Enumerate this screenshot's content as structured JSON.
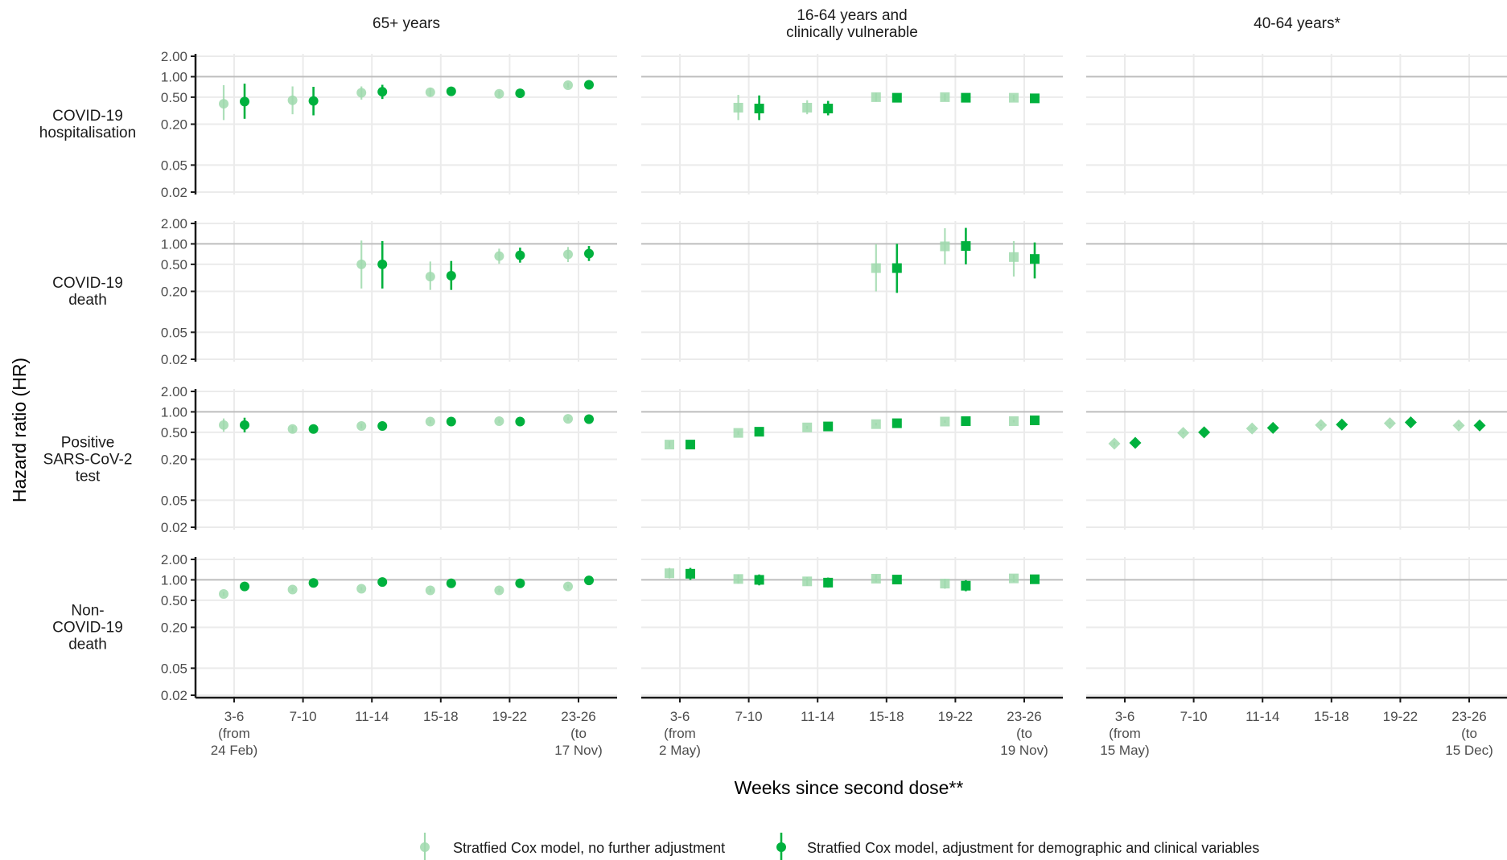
{
  "chart_data": {
    "type": "scatter",
    "subtype": "point-range facet grid",
    "ylabel": "Hazard ratio (HR)",
    "xlabel": "Weeks since second dose**",
    "y_scale": "log",
    "ylim": [
      0.02,
      2.0
    ],
    "y_ticks": [
      2.0,
      1.0,
      0.5,
      0.2,
      0.05,
      0.02
    ],
    "y_tick_labels": [
      "2.00",
      "1.00",
      "0.50",
      "0.20",
      "0.05",
      "0.02"
    ],
    "reference_line": 1.0,
    "categories": [
      "3-6",
      "7-10",
      "11-14",
      "15-18",
      "19-22",
      "23-26"
    ],
    "grid": true,
    "legend_position": "bottom",
    "legend": [
      {
        "name": "Stratfied Cox model, no further adjustment",
        "style": "faded"
      },
      {
        "name": "Stratfied Cox model, adjustment for demographic and clinical variables",
        "style": "solid"
      }
    ],
    "colors": {
      "adjusted": "#00b13e",
      "unadjusted": "#9fd9ad",
      "reference_line": "#bdbdbd",
      "grid": "#ebebeb",
      "axis": "#1a1a1a"
    },
    "columns": [
      {
        "title": [
          "65+ years"
        ],
        "shape": "circle",
        "tick_labels": [
          [
            "3-6",
            "(from",
            "24 Feb)"
          ],
          [
            "7-10"
          ],
          [
            "11-14"
          ],
          [
            "15-18"
          ],
          [
            "19-22"
          ],
          [
            "23-26",
            "(to",
            "17 Nov)"
          ]
        ]
      },
      {
        "title": [
          "16-64 years and",
          "clinically vulnerable"
        ],
        "shape": "square",
        "tick_labels": [
          [
            "3-6",
            "(from",
            "2 May)"
          ],
          [
            "7-10"
          ],
          [
            "11-14"
          ],
          [
            "15-18"
          ],
          [
            "19-22"
          ],
          [
            "23-26",
            "(to",
            "19 Nov)"
          ]
        ]
      },
      {
        "title": [
          "40-64 years*"
        ],
        "shape": "diamond",
        "tick_labels": [
          [
            "3-6",
            "(from",
            "15 May)"
          ],
          [
            "7-10"
          ],
          [
            "11-14"
          ],
          [
            "15-18"
          ],
          [
            "19-22"
          ],
          [
            "23-26",
            "(to",
            "15 Dec)"
          ]
        ]
      }
    ],
    "rows": [
      {
        "label": [
          "COVID-19",
          "hospitalisation"
        ]
      },
      {
        "label": [
          "COVID-19",
          "death"
        ]
      },
      {
        "label": [
          "Positive",
          "SARS-CoV-2",
          "test"
        ]
      },
      {
        "label": [
          "Non-",
          "COVID-19",
          "death"
        ]
      }
    ],
    "panels": [
      {
        "row": 0,
        "col": 0,
        "series": [
          {
            "model": "unadjusted",
            "points": [
              [
                0,
                0.4,
                0.23,
                0.75
              ],
              [
                1,
                0.45,
                0.28,
                0.72
              ],
              [
                2,
                0.58,
                0.46,
                0.72
              ],
              [
                3,
                0.59,
                0.51,
                0.67
              ],
              [
                4,
                0.56,
                0.5,
                0.62
              ],
              [
                5,
                0.75,
                0.69,
                0.81
              ]
            ]
          },
          {
            "model": "adjusted",
            "points": [
              [
                0,
                0.43,
                0.24,
                0.79
              ],
              [
                1,
                0.44,
                0.27,
                0.71
              ],
              [
                2,
                0.6,
                0.47,
                0.76
              ],
              [
                3,
                0.61,
                0.53,
                0.69
              ],
              [
                4,
                0.57,
                0.51,
                0.63
              ],
              [
                5,
                0.76,
                0.7,
                0.82
              ]
            ]
          }
        ]
      },
      {
        "row": 0,
        "col": 1,
        "series": [
          {
            "model": "unadjusted",
            "points": [
              [
                1,
                0.35,
                0.23,
                0.54
              ],
              [
                2,
                0.35,
                0.28,
                0.45
              ],
              [
                3,
                0.5,
                0.43,
                0.58
              ],
              [
                4,
                0.5,
                0.44,
                0.56
              ],
              [
                5,
                0.49,
                0.44,
                0.54
              ]
            ]
          },
          {
            "model": "adjusted",
            "points": [
              [
                1,
                0.34,
                0.23,
                0.53
              ],
              [
                2,
                0.34,
                0.27,
                0.44
              ],
              [
                3,
                0.49,
                0.42,
                0.57
              ],
              [
                4,
                0.49,
                0.43,
                0.55
              ],
              [
                5,
                0.48,
                0.43,
                0.53
              ]
            ]
          }
        ]
      },
      {
        "row": 0,
        "col": 2,
        "series": []
      },
      {
        "row": 1,
        "col": 0,
        "series": [
          {
            "model": "unadjusted",
            "points": [
              [
                2,
                0.5,
                0.22,
                1.12
              ],
              [
                3,
                0.33,
                0.21,
                0.55
              ],
              [
                4,
                0.66,
                0.51,
                0.85
              ],
              [
                5,
                0.7,
                0.54,
                0.9
              ]
            ]
          },
          {
            "model": "adjusted",
            "points": [
              [
                2,
                0.5,
                0.22,
                1.1
              ],
              [
                3,
                0.34,
                0.21,
                0.56
              ],
              [
                4,
                0.68,
                0.53,
                0.88
              ],
              [
                5,
                0.72,
                0.56,
                0.93
              ]
            ]
          }
        ]
      },
      {
        "row": 1,
        "col": 1,
        "series": [
          {
            "model": "unadjusted",
            "points": [
              [
                3,
                0.44,
                0.2,
                0.99
              ],
              [
                4,
                0.92,
                0.5,
                1.7
              ],
              [
                5,
                0.64,
                0.33,
                1.1
              ]
            ]
          },
          {
            "model": "adjusted",
            "points": [
              [
                3,
                0.44,
                0.19,
                1.0
              ],
              [
                4,
                0.93,
                0.5,
                1.72
              ],
              [
                5,
                0.6,
                0.31,
                1.05
              ]
            ]
          }
        ]
      },
      {
        "row": 1,
        "col": 2,
        "series": []
      },
      {
        "row": 2,
        "col": 0,
        "series": [
          {
            "model": "unadjusted",
            "points": [
              [
                0,
                0.64,
                0.51,
                0.8
              ],
              [
                1,
                0.56,
                0.5,
                0.62
              ],
              [
                2,
                0.62,
                0.57,
                0.67
              ],
              [
                3,
                0.72,
                0.68,
                0.76
              ],
              [
                4,
                0.73,
                0.69,
                0.77
              ],
              [
                5,
                0.79,
                0.75,
                0.83
              ]
            ]
          },
          {
            "model": "adjusted",
            "points": [
              [
                0,
                0.64,
                0.5,
                0.82
              ],
              [
                1,
                0.56,
                0.5,
                0.62
              ],
              [
                2,
                0.62,
                0.57,
                0.67
              ],
              [
                3,
                0.72,
                0.68,
                0.76
              ],
              [
                4,
                0.72,
                0.68,
                0.76
              ],
              [
                5,
                0.78,
                0.74,
                0.82
              ]
            ]
          }
        ]
      },
      {
        "row": 2,
        "col": 1,
        "series": [
          {
            "model": "unadjusted",
            "points": [
              [
                0,
                0.33,
                0.3,
                0.37
              ],
              [
                1,
                0.49,
                0.46,
                0.52
              ],
              [
                2,
                0.59,
                0.56,
                0.62
              ],
              [
                3,
                0.66,
                0.63,
                0.69
              ],
              [
                4,
                0.72,
                0.69,
                0.75
              ],
              [
                5,
                0.73,
                0.7,
                0.76
              ]
            ]
          },
          {
            "model": "adjusted",
            "points": [
              [
                0,
                0.33,
                0.3,
                0.37
              ],
              [
                1,
                0.51,
                0.48,
                0.54
              ],
              [
                2,
                0.61,
                0.58,
                0.64
              ],
              [
                3,
                0.68,
                0.65,
                0.71
              ],
              [
                4,
                0.73,
                0.7,
                0.76
              ],
              [
                5,
                0.75,
                0.72,
                0.78
              ]
            ]
          }
        ]
      },
      {
        "row": 2,
        "col": 2,
        "series": [
          {
            "model": "unadjusted",
            "points": [
              [
                0,
                0.34,
                0.32,
                0.36
              ],
              [
                1,
                0.49,
                0.47,
                0.51
              ],
              [
                2,
                0.57,
                0.55,
                0.59
              ],
              [
                3,
                0.64,
                0.62,
                0.66
              ],
              [
                4,
                0.68,
                0.66,
                0.7
              ],
              [
                5,
                0.63,
                0.61,
                0.65
              ]
            ]
          },
          {
            "model": "adjusted",
            "points": [
              [
                0,
                0.35,
                0.33,
                0.37
              ],
              [
                1,
                0.5,
                0.48,
                0.52
              ],
              [
                2,
                0.58,
                0.56,
                0.6
              ],
              [
                3,
                0.65,
                0.63,
                0.67
              ],
              [
                4,
                0.7,
                0.68,
                0.72
              ],
              [
                5,
                0.63,
                0.61,
                0.65
              ]
            ]
          }
        ]
      },
      {
        "row": 3,
        "col": 0,
        "series": [
          {
            "model": "unadjusted",
            "points": [
              [
                0,
                0.62,
                0.58,
                0.66
              ],
              [
                1,
                0.72,
                0.68,
                0.76
              ],
              [
                2,
                0.74,
                0.7,
                0.78
              ],
              [
                3,
                0.7,
                0.66,
                0.74
              ],
              [
                4,
                0.7,
                0.66,
                0.74
              ],
              [
                5,
                0.8,
                0.76,
                0.84
              ]
            ]
          },
          {
            "model": "adjusted",
            "points": [
              [
                0,
                0.8,
                0.75,
                0.85
              ],
              [
                1,
                0.9,
                0.85,
                0.95
              ],
              [
                2,
                0.93,
                0.88,
                0.98
              ],
              [
                3,
                0.89,
                0.84,
                0.94
              ],
              [
                4,
                0.89,
                0.84,
                0.94
              ],
              [
                5,
                0.98,
                0.93,
                1.03
              ]
            ]
          }
        ]
      },
      {
        "row": 3,
        "col": 1,
        "series": [
          {
            "model": "unadjusted",
            "points": [
              [
                0,
                1.25,
                1.05,
                1.5
              ],
              [
                1,
                1.03,
                0.88,
                1.2
              ],
              [
                2,
                0.95,
                0.82,
                1.1
              ],
              [
                3,
                1.04,
                0.92,
                1.18
              ],
              [
                4,
                0.88,
                0.74,
                1.04
              ],
              [
                5,
                1.05,
                0.93,
                1.19
              ]
            ]
          },
          {
            "model": "adjusted",
            "points": [
              [
                0,
                1.23,
                1.0,
                1.5
              ],
              [
                1,
                1.0,
                0.83,
                1.2
              ],
              [
                2,
                0.91,
                0.77,
                1.08
              ],
              [
                3,
                1.01,
                0.88,
                1.16
              ],
              [
                4,
                0.82,
                0.68,
                0.99
              ],
              [
                5,
                1.02,
                0.89,
                1.17
              ]
            ]
          }
        ]
      },
      {
        "row": 3,
        "col": 2,
        "series": []
      }
    ]
  }
}
